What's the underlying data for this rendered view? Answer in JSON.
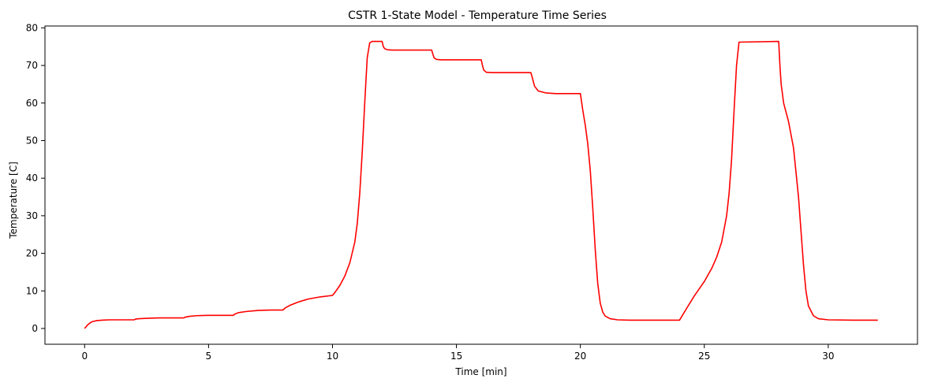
{
  "chart_data": {
    "type": "line",
    "title": "CSTR 1-State Model - Temperature Time Series",
    "xlabel": "Time [min]",
    "ylabel": "Temperature [C]",
    "xlim": [
      -1.6,
      33.6
    ],
    "ylim": [
      -4.2,
      80.5
    ],
    "xticks": [
      0,
      5,
      10,
      15,
      20,
      25,
      30
    ],
    "yticks": [
      0,
      10,
      20,
      30,
      40,
      50,
      60,
      70,
      80
    ],
    "grid": false,
    "legend": "none",
    "series": [
      {
        "color": "#ff0000",
        "x": [
          0,
          0.1,
          0.2,
          0.3,
          0.5,
          0.7,
          1.0,
          1.5,
          2.0,
          2.05,
          2.2,
          2.5,
          3.0,
          4.0,
          4.05,
          4.2,
          4.5,
          5.0,
          6.0,
          6.05,
          6.2,
          6.5,
          7.0,
          7.5,
          8.0,
          8.1,
          8.3,
          8.6,
          9.0,
          9.5,
          10.0,
          10.1,
          10.3,
          10.5,
          10.7,
          10.9,
          11.0,
          11.1,
          11.2,
          11.3,
          11.4,
          11.5,
          11.6,
          12.0,
          12.05,
          12.1,
          12.2,
          12.4,
          14.0,
          14.05,
          14.1,
          14.2,
          14.4,
          16.0,
          16.05,
          16.1,
          16.2,
          16.4,
          18.0,
          18.05,
          18.15,
          18.3,
          18.6,
          19.0,
          20.0,
          20.1,
          20.2,
          20.3,
          20.4,
          20.5,
          20.6,
          20.7,
          20.8,
          20.9,
          21.0,
          21.2,
          21.5,
          22.0,
          24.0,
          24.3,
          24.6,
          25.0,
          25.3,
          25.5,
          25.7,
          25.9,
          26.0,
          26.1,
          26.2,
          26.3,
          26.4,
          28.0,
          28.05,
          28.1,
          28.2,
          28.4,
          28.6,
          28.8,
          28.9,
          29.0,
          29.1,
          29.2,
          29.4,
          29.6,
          30.0,
          31.0,
          32.0
        ],
        "y": [
          0,
          0.8,
          1.4,
          1.8,
          2.1,
          2.2,
          2.3,
          2.3,
          2.3,
          2.5,
          2.6,
          2.7,
          2.8,
          2.8,
          3.0,
          3.2,
          3.4,
          3.5,
          3.5,
          3.8,
          4.2,
          4.5,
          4.8,
          4.9,
          4.9,
          5.5,
          6.2,
          7.0,
          7.8,
          8.4,
          8.8,
          9.6,
          11.5,
          14.0,
          17.5,
          23.0,
          28.0,
          36.0,
          47.0,
          60.0,
          72.0,
          76.0,
          76.4,
          76.4,
          75.0,
          74.5,
          74.2,
          74.1,
          74.1,
          73.0,
          72.0,
          71.6,
          71.5,
          71.5,
          70.0,
          68.8,
          68.2,
          68.1,
          68.1,
          67.0,
          64.5,
          63.2,
          62.7,
          62.5,
          62.5,
          58.0,
          54.0,
          49.0,
          42.0,
          32.0,
          21.0,
          12.0,
          6.8,
          4.4,
          3.3,
          2.6,
          2.3,
          2.2,
          2.2,
          5.5,
          8.7,
          12.5,
          16.0,
          19.0,
          23.0,
          30.0,
          36.0,
          45.0,
          58.0,
          70.0,
          76.2,
          76.4,
          70.0,
          65.0,
          60.0,
          55.0,
          48.0,
          35.0,
          26.0,
          17.0,
          10.0,
          6.0,
          3.4,
          2.6,
          2.3,
          2.2,
          2.2
        ]
      }
    ]
  }
}
